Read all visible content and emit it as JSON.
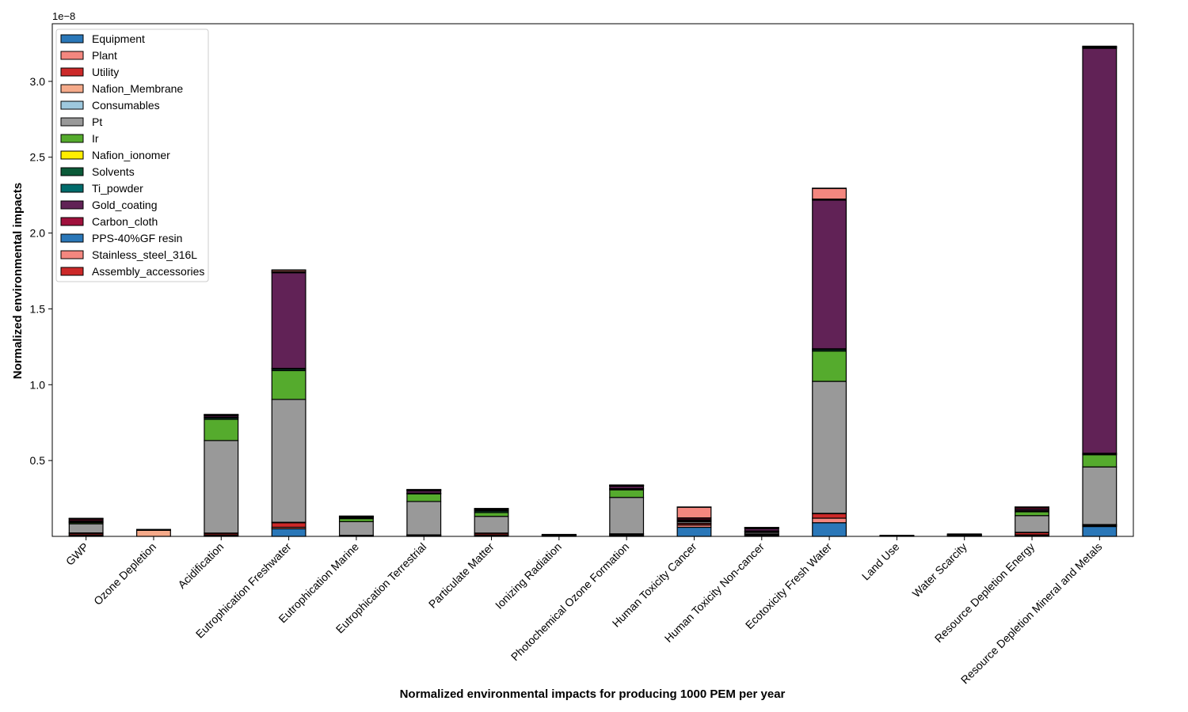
{
  "chart_data": {
    "type": "bar",
    "stacked": true,
    "xlabel": "Normalized environmental impacts for producing 1000 PEM per year",
    "ylabel": "Normalized environmental impacts",
    "offset_text": "1e−8",
    "ylim": [
      0,
      3.38
    ],
    "yticks": [
      "0.5",
      "1.0",
      "1.5",
      "2.0",
      "2.5",
      "3.0"
    ],
    "ytick_values": [
      0.5,
      1.0,
      1.5,
      2.0,
      2.5,
      3.0
    ],
    "legend_position": "upper-left",
    "categories": [
      "GWP",
      "Ozone Depletion",
      "Acidification",
      "Eutrophication Freshwater",
      "Eutrophication Marine",
      "Eutrophication Terrestrial",
      "Particulate Matter",
      "Ionizing Radiation",
      "Photochemical Ozone Formation",
      "Human Toxicity Cancer",
      "Human Toxicity Non-cancer",
      "Ecotoxicity Fresh Water",
      "Land Use",
      "Water Scarcity",
      "Resource Depletion Energy",
      "Resource Depletion Mineral and Metals"
    ],
    "series": [
      {
        "name": "Equipment",
        "color": "#2a77b8",
        "values": [
          0.005,
          0,
          0.005,
          0.05,
          0.002,
          0.002,
          0.005,
          0.002,
          0.005,
          0.06,
          0.005,
          0.09,
          0.001,
          0.002,
          0.005,
          0.065
        ]
      },
      {
        "name": "Plant",
        "color": "#f4877f",
        "values": [
          0.005,
          0,
          0.005,
          0.01,
          0.002,
          0.002,
          0.005,
          0.001,
          0.005,
          0.015,
          0.005,
          0.03,
          0.001,
          0.002,
          0.005,
          0.005
        ]
      },
      {
        "name": "Utility",
        "color": "#cc2929",
        "values": [
          0.01,
          0,
          0.01,
          0.03,
          0.002,
          0.005,
          0.01,
          0.001,
          0.005,
          0.01,
          0.005,
          0.03,
          0.001,
          0.002,
          0.015,
          0.005
        ]
      },
      {
        "name": "Nafion_Membrane",
        "color": "#f5aa8a",
        "values": [
          0.003,
          0.04,
          0.002,
          0.003,
          0.001,
          0.001,
          0.002,
          0.001,
          0.002,
          0.002,
          0.001,
          0.002,
          0.001,
          0.001,
          0.002,
          0.003
        ]
      },
      {
        "name": "Consumables",
        "color": "#9ec8de",
        "values": [
          0,
          0,
          0,
          0,
          0,
          0,
          0,
          0,
          0,
          0,
          0,
          0,
          0,
          0,
          0,
          0
        ]
      },
      {
        "name": "Pt",
        "color": "#999999",
        "values": [
          0.06,
          0,
          0.61,
          0.81,
          0.09,
          0.22,
          0.11,
          0,
          0.24,
          0.01,
          0.01,
          0.87,
          0,
          0,
          0.11,
          0.38
        ]
      },
      {
        "name": "Ir",
        "color": "#55ab2d",
        "values": [
          0.008,
          0,
          0.14,
          0.19,
          0.02,
          0.05,
          0.025,
          0,
          0.05,
          0.003,
          0.003,
          0.2,
          0,
          0,
          0.025,
          0.08
        ]
      },
      {
        "name": "Nafion_ionomer",
        "color": "#ffee00",
        "values": [
          0,
          0,
          0,
          0,
          0,
          0,
          0,
          0,
          0,
          0,
          0,
          0,
          0,
          0,
          0,
          0
        ]
      },
      {
        "name": "Solvents",
        "color": "#0b5a38",
        "values": [
          0.003,
          0.002,
          0.01,
          0.01,
          0.005,
          0.003,
          0.01,
          0.003,
          0.005,
          0.003,
          0.005,
          0.01,
          0.001,
          0.003,
          0.005,
          0.005
        ]
      },
      {
        "name": "Ti_powder",
        "color": "#006b6b",
        "values": [
          0.005,
          0,
          0.003,
          0.005,
          0.001,
          0.002,
          0.003,
          0.001,
          0.003,
          0.002,
          0.002,
          0.005,
          0,
          0.001,
          0.003,
          0.005
        ]
      },
      {
        "name": "Gold_coating",
        "color": "#612256",
        "values": [
          0.005,
          0,
          0.01,
          0.63,
          0.005,
          0.015,
          0.005,
          0.002,
          0.015,
          0.005,
          0.015,
          0.98,
          0.001,
          0.002,
          0.01,
          2.67
        ]
      },
      {
        "name": "Carbon_cloth",
        "color": "#a0113d",
        "values": [
          0.01,
          0.002,
          0.005,
          0.005,
          0.003,
          0.005,
          0.005,
          0.001,
          0.005,
          0.01,
          0.005,
          0.005,
          0.001,
          0.002,
          0.01,
          0.005
        ]
      },
      {
        "name": "PPS-40%GF resin",
        "color": "#2a77b8",
        "values": [
          0.002,
          0,
          0.001,
          0.002,
          0.001,
          0.001,
          0.001,
          0,
          0.001,
          0.002,
          0.001,
          0.002,
          0,
          0,
          0.001,
          0.002
        ]
      },
      {
        "name": "Stainless_steel_316L",
        "color": "#f4877f",
        "values": [
          0.002,
          0.002,
          0.002,
          0.01,
          0.001,
          0.002,
          0.002,
          0.001,
          0.002,
          0.07,
          0.001,
          0.07,
          0,
          0.001,
          0.002,
          0.005
        ]
      },
      {
        "name": "Assembly_accessories",
        "color": "#cc2929",
        "values": [
          0.001,
          0,
          0.001,
          0.002,
          0.001,
          0.001,
          0.001,
          0,
          0.001,
          0.002,
          0.001,
          0.002,
          0,
          0,
          0.001,
          0.002
        ]
      }
    ]
  }
}
